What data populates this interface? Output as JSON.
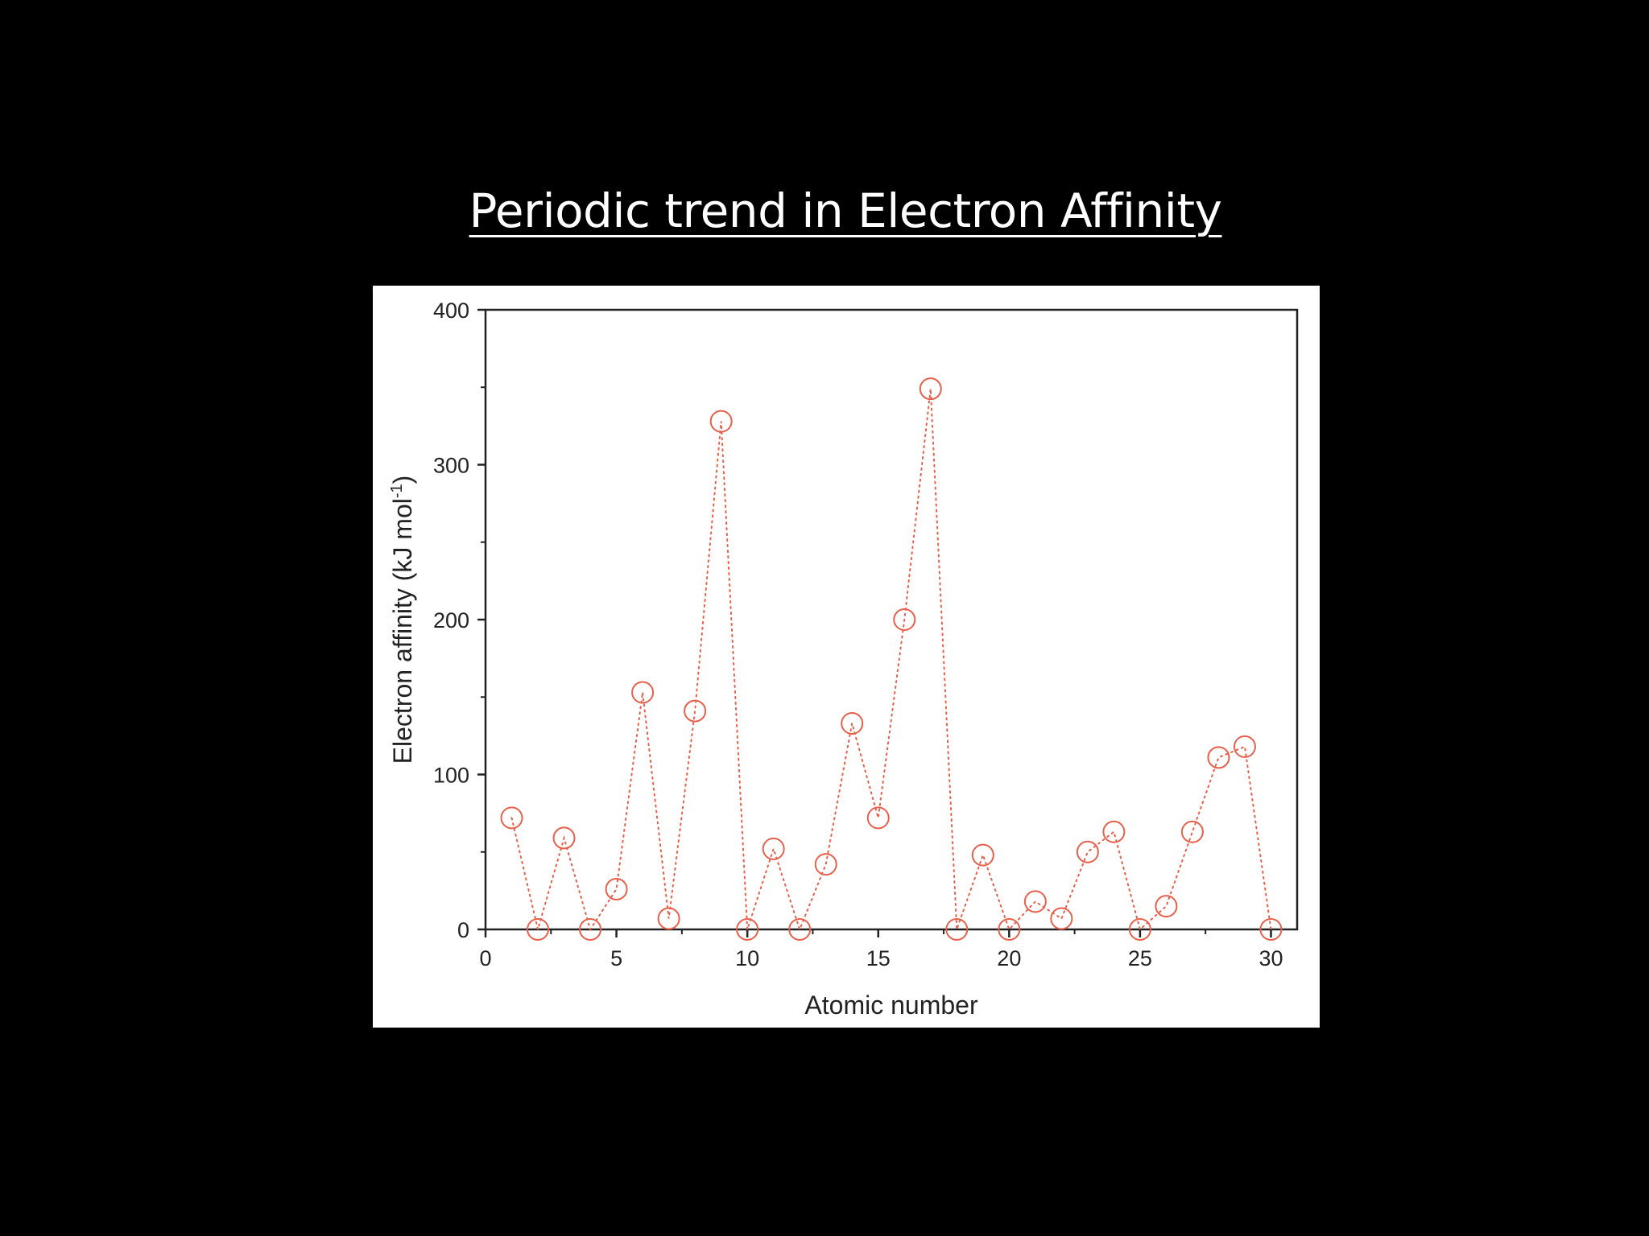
{
  "slide": {
    "title": "Periodic trend in Electron Affinity"
  },
  "chart_data": {
    "type": "scatter",
    "title": "",
    "xlabel": "Atomic number",
    "ylabel": "Electron affinity (kJ mol",
    "ylabel_superscript": "-1",
    "ylabel_close": ")",
    "xlim": [
      0,
      31
    ],
    "ylim": [
      0,
      400
    ],
    "x_ticks": [
      0,
      5,
      10,
      15,
      20,
      25,
      30
    ],
    "y_ticks": [
      0,
      100,
      200,
      300,
      400
    ],
    "grid": false,
    "legend": "none",
    "marker": "open-circle",
    "line_style": "dotted",
    "color": "#e8604c",
    "series": [
      {
        "x": [
          1,
          2,
          3,
          4,
          5,
          6,
          7,
          8,
          9,
          10,
          11,
          12,
          13,
          14,
          15,
          16,
          17,
          18,
          19,
          20,
          21,
          22,
          23,
          24,
          25,
          26,
          27,
          28,
          29,
          30
        ],
        "y": [
          72,
          0,
          59,
          0,
          26,
          153,
          7,
          141,
          328,
          0,
          52,
          0,
          42,
          133,
          72,
          200,
          349,
          0,
          48,
          0,
          18,
          7,
          50,
          63,
          0,
          15,
          63,
          111,
          118,
          0
        ]
      }
    ]
  }
}
